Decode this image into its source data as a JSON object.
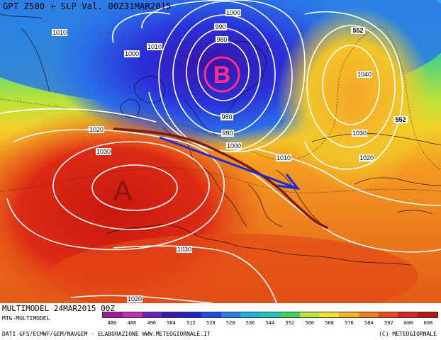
{
  "title": "GPT Z500 + SLP Val. 00Z31MAR2015",
  "footer": {
    "run": "MULTIMODEL 24MAR2015 00Z",
    "model": "MTG-MULTIMODEL",
    "sources": "DATI GFS/ECMWF/GEM/NAVGEM - ELABORAZIONE WWW.METEOGIORNALE.IT",
    "copyright": "(C) METEOGIORNALE"
  },
  "colorbar": {
    "values": [
      "480",
      "488",
      "496",
      "504",
      "512",
      "520",
      "528",
      "536",
      "544",
      "552",
      "560",
      "568",
      "576",
      "584",
      "592",
      "600",
      "608"
    ],
    "colors": [
      "#a01a9a",
      "#c72fb0",
      "#6b1fbf",
      "#3a1bb0",
      "#1a24c8",
      "#1a4ee0",
      "#2a7ef5",
      "#1fb2e6",
      "#20c8b8",
      "#3ed35a",
      "#b8e33a",
      "#f2e22a",
      "#f5b225",
      "#f07d1e",
      "#e84a1a",
      "#d4261a",
      "#b8140e"
    ]
  },
  "isobar_labels": [
    "1010",
    "1000",
    "1000",
    "990",
    "980",
    "1010",
    "980",
    "990",
    "1000",
    "1040",
    "1030",
    "1020",
    "1010",
    "1020",
    "1030",
    "1030",
    "1020"
  ],
  "z500_labels": [
    "552",
    "552"
  ],
  "pressure_centers": {
    "low": "B",
    "high": "A"
  }
}
